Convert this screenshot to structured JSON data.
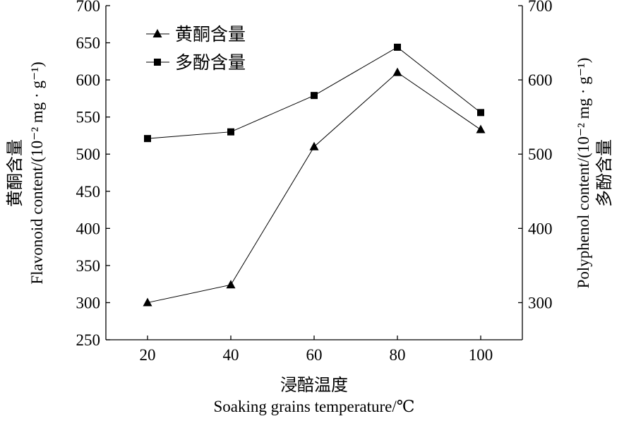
{
  "chart_data": {
    "type": "line",
    "x": [
      20,
      40,
      60,
      80,
      100
    ],
    "xlim": [
      10,
      110
    ],
    "ylim": [
      250,
      700
    ],
    "y2lim": [
      250,
      700
    ],
    "xticks": [
      "20",
      "40",
      "60",
      "80",
      "100"
    ],
    "yticks": [
      "250",
      "300",
      "350",
      "400",
      "450",
      "500",
      "550",
      "600",
      "650",
      "700"
    ],
    "y2ticks": [
      "300",
      "400",
      "500",
      "600",
      "700"
    ],
    "xlabel_cn": "浸醅温度",
    "xlabel_en": "Soaking grains temperature/℃",
    "ylabel_cn": "黄酮含量",
    "ylabel_en": "Flavonoid content/(10⁻² mg · g⁻¹)",
    "y2label_en": "Polyphenol content/(10⁻² mg · g⁻¹)",
    "y2label_cn": "多酚含量",
    "legend_position": "top-left",
    "series": [
      {
        "name": "黄酮含量",
        "marker": "triangle",
        "axis": "left",
        "values": [
          300,
          324,
          510,
          610,
          533
        ]
      },
      {
        "name": "多酚含量",
        "marker": "square",
        "axis": "right",
        "values": [
          521,
          530,
          579,
          644,
          556
        ]
      }
    ],
    "grid": false
  }
}
